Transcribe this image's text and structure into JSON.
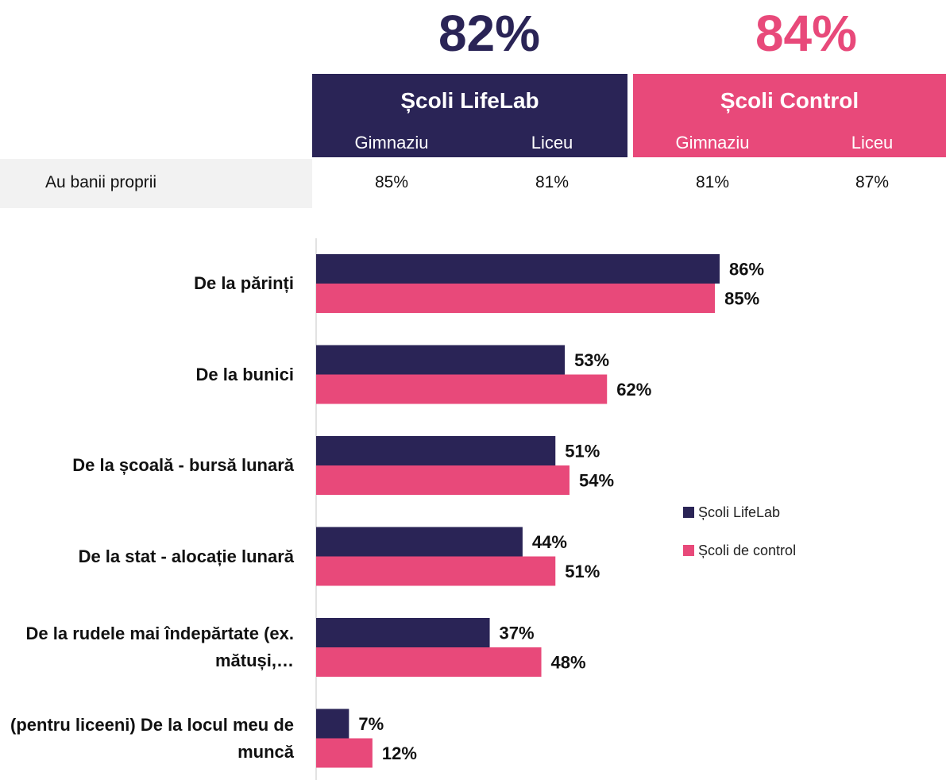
{
  "header": {
    "totals": [
      "82%",
      "84%"
    ],
    "groups": [
      {
        "name": "Școli LifeLab",
        "columns": [
          "Gimnaziu",
          "Liceu"
        ]
      },
      {
        "name": "Școli Control",
        "columns": [
          "Gimnaziu",
          "Liceu"
        ]
      }
    ],
    "row": {
      "label": "Au banii proprii",
      "values": [
        "85%",
        "81%",
        "81%",
        "87%"
      ]
    }
  },
  "chart_data": {
    "type": "bar",
    "orientation": "horizontal",
    "categories": [
      "De la părinți",
      "De la bunici",
      "De la școală - bursă lunară",
      "De la stat - alocație lunară",
      "De la rudele mai îndepărtate (ex. mătuși,…",
      "(pentru liceeni) De la locul meu de muncă"
    ],
    "series": [
      {
        "name": "Școli LifeLab",
        "color": "#2a2456",
        "values": [
          86,
          53,
          51,
          44,
          37,
          7
        ],
        "value_labels": [
          "86%",
          "53%",
          "51%",
          "44%",
          "37%",
          "7%"
        ]
      },
      {
        "name": "Școli de control",
        "color": "#e8497a",
        "values": [
          85,
          62,
          54,
          51,
          48,
          12
        ],
        "value_labels": [
          "85%",
          "62%",
          "54%",
          "51%",
          "48%",
          "12%"
        ]
      }
    ],
    "xlim": [
      0,
      100
    ],
    "legend": "right"
  }
}
